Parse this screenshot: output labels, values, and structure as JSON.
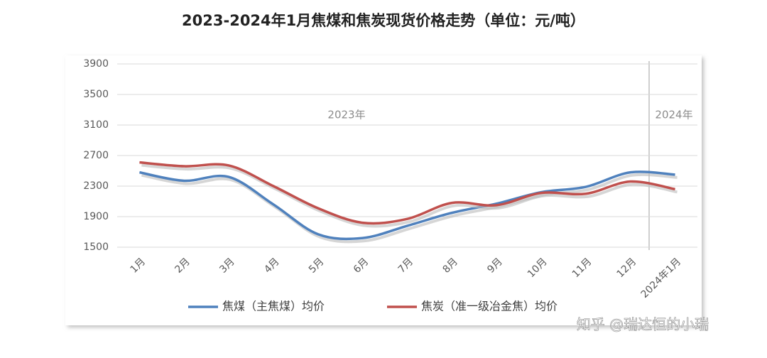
{
  "chart_data": {
    "type": "line",
    "title": "2023-2024年1月焦煤和焦炭现货价格走势（单位：元/吨）",
    "categories": [
      "1月",
      "2月",
      "3月",
      "4月",
      "5月",
      "6月",
      "7月",
      "8月",
      "9月",
      "10月",
      "11月",
      "12月",
      "2024年1月"
    ],
    "series": [
      {
        "name": "焦煤（主焦煤）均价",
        "color": "#4f81bd",
        "values": [
          2480,
          2370,
          2420,
          2060,
          1670,
          1620,
          1780,
          1950,
          2070,
          2220,
          2290,
          2480,
          2450
        ]
      },
      {
        "name": "焦炭（准一级冶金焦）均价",
        "color": "#c0504d",
        "values": [
          2610,
          2560,
          2570,
          2300,
          2010,
          1820,
          1870,
          2080,
          2050,
          2210,
          2200,
          2360,
          2260
        ]
      }
    ],
    "ylim": [
      1500,
      3900
    ],
    "yticks": [
      1500,
      1900,
      2300,
      2700,
      3100,
      3500,
      3900
    ],
    "grid": true,
    "annotations": [
      "2023年",
      "2024年"
    ],
    "watermark": "知乎 @瑞达恒的小瑞"
  }
}
